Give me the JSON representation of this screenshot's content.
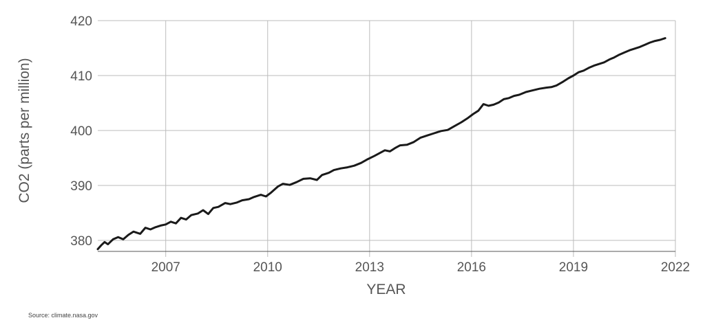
{
  "chart_data": {
    "type": "line",
    "title": "",
    "xlabel": "YEAR",
    "ylabel": "CO2 (parts per million)",
    "xlim": [
      2005.0,
      2022.0
    ],
    "ylim": [
      378,
      420
    ],
    "x_ticks": [
      2007,
      2010,
      2013,
      2016,
      2019,
      2022
    ],
    "y_ticks": [
      380,
      390,
      400,
      410,
      420
    ],
    "grid": true,
    "line_color": "#1a1a1a",
    "grid_color": "#bbbbbb",
    "series": [
      {
        "x": [
          2005.0,
          2005.1,
          2005.2,
          2005.3,
          2005.45,
          2005.6,
          2005.75,
          2005.9,
          2006.05,
          2006.25,
          2006.4,
          2006.55,
          2006.7,
          2006.85,
          2007.0,
          2007.15,
          2007.3,
          2007.45,
          2007.6,
          2007.75,
          2007.95,
          2008.1,
          2008.25,
          2008.4,
          2008.55,
          2008.75,
          2008.9,
          2009.1,
          2009.25,
          2009.45,
          2009.6,
          2009.8,
          2009.95,
          2010.1,
          2010.3,
          2010.45,
          2010.65,
          2010.85,
          2011.05,
          2011.25,
          2011.45,
          2011.6,
          2011.8,
          2011.95,
          2012.15,
          2012.35,
          2012.55,
          2012.75,
          2012.95,
          2013.15,
          2013.3,
          2013.45,
          2013.6,
          2013.75,
          2013.9,
          2014.1,
          2014.3,
          2014.5,
          2014.7,
          2014.9,
          2015.1,
          2015.3,
          2015.5,
          2015.7,
          2015.9,
          2016.05,
          2016.2,
          2016.35,
          2016.5,
          2016.65,
          2016.8,
          2016.95,
          2017.1,
          2017.25,
          2017.4,
          2017.6,
          2017.8,
          2018.0,
          2018.2,
          2018.35,
          2018.5,
          2018.7,
          2018.85,
          2019.0,
          2019.15,
          2019.3,
          2019.45,
          2019.6,
          2019.75,
          2019.9,
          2020.05,
          2020.2,
          2020.35,
          2020.5,
          2020.65,
          2020.8,
          2020.95,
          2021.1,
          2021.25,
          2021.4,
          2021.55,
          2021.7
        ],
        "values": [
          378.4,
          379.1,
          379.7,
          379.3,
          380.2,
          380.6,
          380.2,
          381.0,
          381.6,
          381.2,
          382.3,
          382.0,
          382.4,
          382.7,
          382.9,
          383.4,
          383.1,
          384.1,
          383.8,
          384.6,
          384.9,
          385.5,
          384.8,
          385.9,
          386.1,
          386.8,
          386.6,
          386.9,
          387.3,
          387.5,
          387.9,
          388.3,
          388.0,
          388.7,
          389.8,
          390.3,
          390.1,
          390.6,
          391.2,
          391.3,
          391.0,
          391.9,
          392.3,
          392.8,
          393.1,
          393.3,
          393.6,
          394.1,
          394.8,
          395.4,
          395.9,
          396.4,
          396.2,
          396.8,
          397.3,
          397.4,
          397.9,
          398.7,
          399.1,
          399.5,
          399.9,
          400.1,
          400.8,
          401.5,
          402.3,
          403.0,
          403.6,
          404.8,
          404.5,
          404.7,
          405.1,
          405.7,
          405.9,
          406.3,
          406.5,
          407.0,
          407.3,
          407.6,
          407.8,
          407.9,
          408.2,
          408.9,
          409.5,
          410.0,
          410.6,
          410.9,
          411.4,
          411.8,
          412.1,
          412.4,
          412.9,
          413.3,
          413.8,
          414.2,
          414.6,
          414.9,
          415.2,
          415.6,
          416.0,
          416.3,
          416.5,
          416.8
        ]
      }
    ]
  },
  "source": "Source: climate.nasa.gov"
}
